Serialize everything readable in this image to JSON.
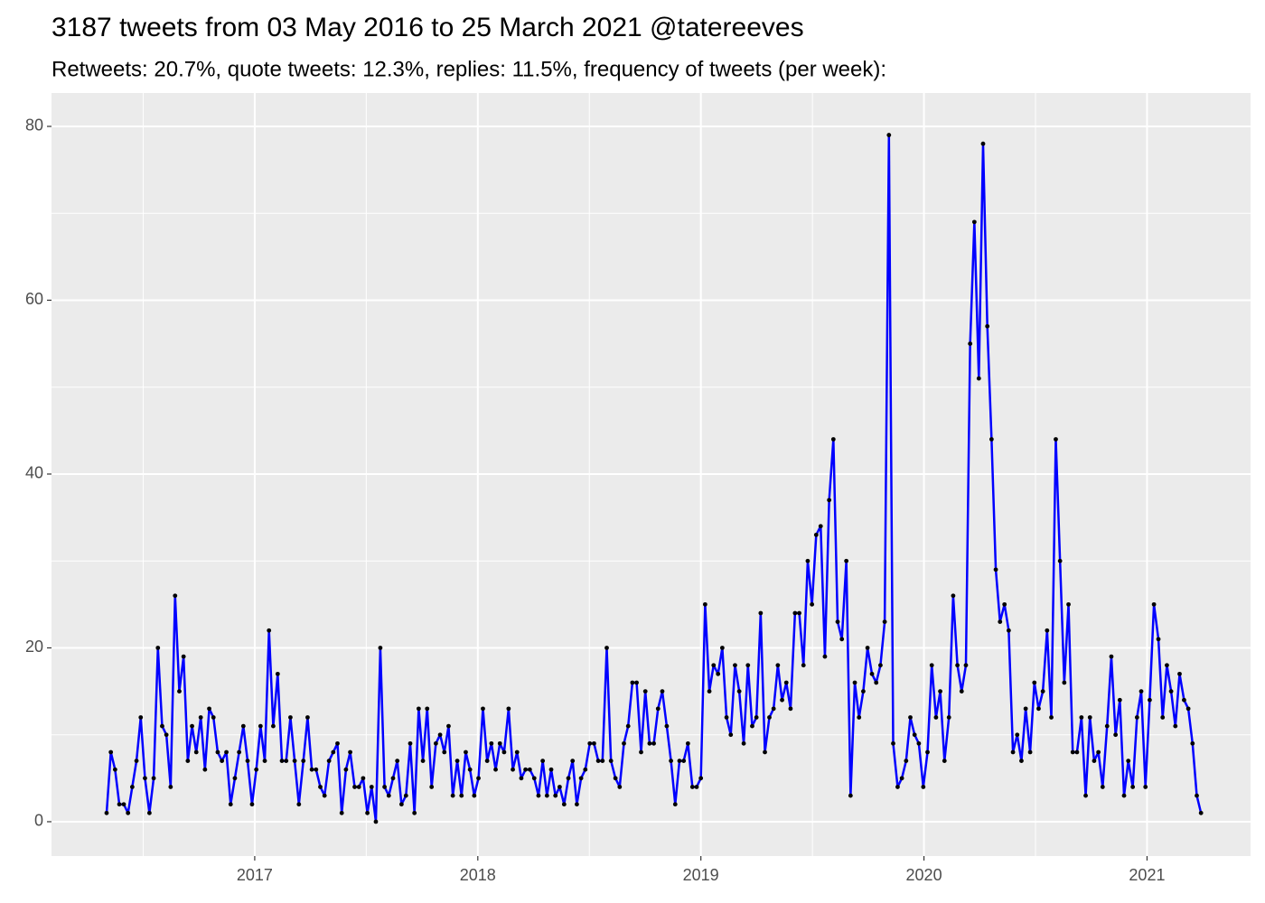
{
  "chart_data": {
    "type": "line",
    "title": "3187 tweets from 03 May 2016 to 25 March 2021 @tatereeves",
    "subtitle": "Retweets: 20.7%, quote tweets: 12.3%, replies: 11.5%, frequency of tweets (per week):",
    "color": "#0000ff",
    "point_color": "#000000",
    "grid": true,
    "xlim": [
      2016.089,
      2021.464
    ],
    "xticks": [
      2017,
      2018,
      2019,
      2020,
      2021
    ],
    "ylim": [
      -3.95,
      83.84
    ],
    "yticks": [
      0,
      20,
      40,
      60,
      80
    ],
    "x": [
      2016.336,
      2016.355,
      2016.374,
      2016.393,
      2016.413,
      2016.432,
      2016.451,
      2016.47,
      2016.489,
      2016.508,
      2016.528,
      2016.547,
      2016.566,
      2016.585,
      2016.604,
      2016.623,
      2016.643,
      2016.662,
      2016.681,
      2016.7,
      2016.719,
      2016.738,
      2016.758,
      2016.777,
      2016.796,
      2016.815,
      2016.834,
      2016.853,
      2016.873,
      2016.892,
      2016.911,
      2016.93,
      2016.949,
      2016.968,
      2016.988,
      2017.007,
      2017.026,
      2017.045,
      2017.064,
      2017.083,
      2017.103,
      2017.122,
      2017.141,
      2017.16,
      2017.179,
      2017.198,
      2017.218,
      2017.237,
      2017.256,
      2017.275,
      2017.294,
      2017.313,
      2017.333,
      2017.352,
      2017.371,
      2017.39,
      2017.409,
      2017.428,
      2017.448,
      2017.467,
      2017.486,
      2017.505,
      2017.524,
      2017.543,
      2017.563,
      2017.582,
      2017.601,
      2017.62,
      2017.639,
      2017.658,
      2017.678,
      2017.697,
      2017.716,
      2017.735,
      2017.754,
      2017.773,
      2017.793,
      2017.812,
      2017.831,
      2017.85,
      2017.869,
      2017.888,
      2017.908,
      2017.927,
      2017.946,
      2017.965,
      2017.984,
      2018.003,
      2018.023,
      2018.042,
      2018.061,
      2018.08,
      2018.099,
      2018.118,
      2018.138,
      2018.157,
      2018.176,
      2018.195,
      2018.214,
      2018.233,
      2018.253,
      2018.272,
      2018.291,
      2018.31,
      2018.329,
      2018.348,
      2018.367,
      2018.387,
      2018.406,
      2018.425,
      2018.444,
      2018.463,
      2018.482,
      2018.502,
      2018.521,
      2018.54,
      2018.559,
      2018.578,
      2018.597,
      2018.617,
      2018.636,
      2018.655,
      2018.674,
      2018.693,
      2018.712,
      2018.732,
      2018.751,
      2018.77,
      2018.789,
      2018.808,
      2018.827,
      2018.847,
      2018.866,
      2018.885,
      2018.904,
      2018.923,
      2018.942,
      2018.962,
      2018.981,
      2019.0,
      2019.019,
      2019.038,
      2019.057,
      2019.077,
      2019.096,
      2019.115,
      2019.134,
      2019.153,
      2019.172,
      2019.192,
      2019.211,
      2019.23,
      2019.249,
      2019.268,
      2019.287,
      2019.307,
      2019.326,
      2019.345,
      2019.364,
      2019.383,
      2019.402,
      2019.422,
      2019.441,
      2019.46,
      2019.479,
      2019.498,
      2019.517,
      2019.537,
      2019.556,
      2019.575,
      2019.594,
      2019.613,
      2019.632,
      2019.652,
      2019.671,
      2019.69,
      2019.709,
      2019.728,
      2019.747,
      2019.767,
      2019.786,
      2019.805,
      2019.824,
      2019.843,
      2019.862,
      2019.882,
      2019.901,
      2019.92,
      2019.939,
      2019.958,
      2019.977,
      2019.997,
      2020.016,
      2020.035,
      2020.054,
      2020.073,
      2020.092,
      2020.112,
      2020.131,
      2020.15,
      2020.169,
      2020.188,
      2020.207,
      2020.226,
      2020.246,
      2020.265,
      2020.284,
      2020.303,
      2020.322,
      2020.341,
      2020.361,
      2020.38,
      2020.399,
      2020.418,
      2020.437,
      2020.456,
      2020.476,
      2020.495,
      2020.514,
      2020.533,
      2020.552,
      2020.571,
      2020.591,
      2020.61,
      2020.629,
      2020.648,
      2020.667,
      2020.686,
      2020.706,
      2020.725,
      2020.744,
      2020.763,
      2020.782,
      2020.801,
      2020.821,
      2020.84,
      2020.859,
      2020.878,
      2020.897,
      2020.916,
      2020.936,
      2020.955,
      2020.974,
      2020.993,
      2021.012,
      2021.031,
      2021.051,
      2021.07,
      2021.089,
      2021.108,
      2021.127,
      2021.146,
      2021.166,
      2021.185,
      2021.204,
      2021.223,
      2021.242
    ],
    "values": [
      1,
      8,
      6,
      2,
      2,
      1,
      4,
      7,
      12,
      5,
      1,
      5,
      20,
      11,
      10,
      4,
      26,
      15,
      19,
      7,
      11,
      8,
      12,
      6,
      13,
      12,
      8,
      7,
      8,
      2,
      5,
      8,
      11,
      7,
      2,
      6,
      11,
      7,
      22,
      11,
      17,
      7,
      7,
      12,
      7,
      2,
      7,
      12,
      6,
      6,
      4,
      3,
      7,
      8,
      9,
      1,
      6,
      8,
      4,
      4,
      5,
      1,
      4,
      0,
      20,
      4,
      3,
      5,
      7,
      2,
      3,
      9,
      1,
      13,
      7,
      13,
      4,
      9,
      10,
      8,
      11,
      3,
      7,
      3,
      8,
      6,
      3,
      5,
      13,
      7,
      9,
      6,
      9,
      8,
      13,
      6,
      8,
      5,
      6,
      6,
      5,
      3,
      7,
      3,
      6,
      3,
      4,
      2,
      5,
      7,
      2,
      5,
      6,
      9,
      9,
      7,
      7,
      20,
      7,
      5,
      4,
      9,
      11,
      16,
      16,
      8,
      15,
      9,
      9,
      13,
      15,
      11,
      7,
      2,
      7,
      7,
      9,
      4,
      4,
      5,
      25,
      15,
      18,
      17,
      20,
      12,
      10,
      18,
      15,
      9,
      18,
      11,
      12,
      24,
      8,
      12,
      13,
      18,
      14,
      16,
      13,
      24,
      24,
      18,
      30,
      25,
      33,
      34,
      19,
      37,
      44,
      23,
      21,
      30,
      3,
      16,
      12,
      15,
      20,
      17,
      16,
      18,
      23,
      79,
      9,
      4,
      5,
      7,
      12,
      10,
      9,
      4,
      8,
      18,
      12,
      15,
      7,
      12,
      26,
      18,
      15,
      18,
      55,
      69,
      51,
      78,
      57,
      44,
      29,
      23,
      25,
      22,
      8,
      10,
      7,
      13,
      8,
      16,
      13,
      15,
      22,
      12,
      44,
      30,
      16,
      25,
      8,
      8,
      12,
      3,
      12,
      7,
      8,
      4,
      11,
      19,
      10,
      14,
      3,
      7,
      4,
      12,
      15,
      4,
      14,
      25,
      21,
      12,
      18,
      15,
      11,
      17,
      14,
      13,
      9,
      3,
      1
    ]
  }
}
